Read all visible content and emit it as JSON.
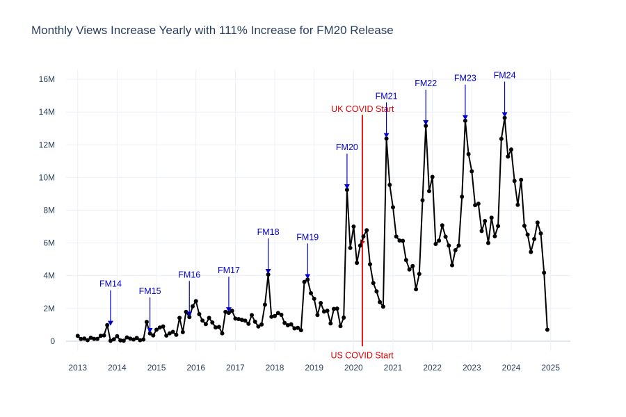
{
  "title": "Monthly Views Increase Yearly with 111% Increase for FM20 Release",
  "colors": {
    "line": "#000000",
    "fm_annotation": "#0000cc",
    "covid": "#e00000",
    "grid": "#ebf0f8",
    "text": "#2a3f5f"
  },
  "chart_data": {
    "type": "line",
    "title": "Monthly Views Increase Yearly with 111% Increase for FM20 Release",
    "xlabel": "",
    "ylabel": "",
    "xlim": [
      "2012-09-15",
      "2025-07-01"
    ],
    "ylim": [
      -600000,
      16600000
    ],
    "grid": true,
    "legend": "none",
    "x_ticks": [
      "2013",
      "2014",
      "2015",
      "2016",
      "2017",
      "2018",
      "2019",
      "2020",
      "2021",
      "2022",
      "2023",
      "2024",
      "2025"
    ],
    "y_ticks": [
      {
        "value": 0,
        "label": "0"
      },
      {
        "value": 2000000,
        "label": "2M"
      },
      {
        "value": 4000000,
        "label": "4M"
      },
      {
        "value": 6000000,
        "label": "6M"
      },
      {
        "value": 8000000,
        "label": "8M"
      },
      {
        "value": 10000000,
        "label": "10M"
      },
      {
        "value": 12000000,
        "label": "12M"
      },
      {
        "value": 14000000,
        "label": "14M"
      },
      {
        "value": 16000000,
        "label": "16M"
      }
    ],
    "x": [
      "2013-01",
      "2013-02",
      "2013-03",
      "2013-04",
      "2013-05",
      "2013-06",
      "2013-07",
      "2013-08",
      "2013-09",
      "2013-10",
      "2013-11",
      "2013-12",
      "2014-01",
      "2014-02",
      "2014-03",
      "2014-04",
      "2014-05",
      "2014-06",
      "2014-07",
      "2014-08",
      "2014-09",
      "2014-10",
      "2014-11",
      "2014-12",
      "2015-01",
      "2015-02",
      "2015-03",
      "2015-04",
      "2015-05",
      "2015-06",
      "2015-07",
      "2015-08",
      "2015-09",
      "2015-10",
      "2015-11",
      "2015-12",
      "2016-01",
      "2016-02",
      "2016-03",
      "2016-04",
      "2016-05",
      "2016-06",
      "2016-07",
      "2016-08",
      "2016-09",
      "2016-10",
      "2016-11",
      "2016-12",
      "2017-01",
      "2017-02",
      "2017-03",
      "2017-04",
      "2017-05",
      "2017-06",
      "2017-07",
      "2017-08",
      "2017-09",
      "2017-10",
      "2017-11",
      "2017-12",
      "2018-01",
      "2018-02",
      "2018-03",
      "2018-04",
      "2018-05",
      "2018-06",
      "2018-07",
      "2018-08",
      "2018-09",
      "2018-10",
      "2018-11",
      "2018-12",
      "2019-01",
      "2019-02",
      "2019-03",
      "2019-04",
      "2019-05",
      "2019-06",
      "2019-07",
      "2019-08",
      "2019-09",
      "2019-10",
      "2019-11",
      "2019-12",
      "2020-01",
      "2020-02",
      "2020-03",
      "2020-04",
      "2020-05",
      "2020-06",
      "2020-07",
      "2020-08",
      "2020-09",
      "2020-10",
      "2020-11",
      "2020-12",
      "2021-01",
      "2021-02",
      "2021-03",
      "2021-04",
      "2021-05",
      "2021-06",
      "2021-07",
      "2021-08",
      "2021-09",
      "2021-10",
      "2021-11",
      "2021-12",
      "2022-01",
      "2022-02",
      "2022-03",
      "2022-04",
      "2022-05",
      "2022-06",
      "2022-07",
      "2022-08",
      "2022-09",
      "2022-10",
      "2022-11",
      "2022-12",
      "2023-01",
      "2023-02",
      "2023-03",
      "2023-04",
      "2023-05",
      "2023-06",
      "2023-07",
      "2023-08",
      "2023-09",
      "2023-10",
      "2023-11",
      "2023-12",
      "2024-01",
      "2024-02",
      "2024-03",
      "2024-04",
      "2024-05",
      "2024-06",
      "2024-07",
      "2024-08",
      "2024-09",
      "2024-10",
      "2024-11",
      "2024-12"
    ],
    "series": [
      {
        "values": [
          320000,
          130000,
          160000,
          60000,
          210000,
          140000,
          140000,
          330000,
          350000,
          980000,
          20000,
          110000,
          300000,
          50000,
          30000,
          230000,
          150000,
          100000,
          200000,
          60000,
          100000,
          1170000,
          470000,
          350000,
          700000,
          830000,
          900000,
          340000,
          480000,
          570000,
          390000,
          1420000,
          550000,
          1790000,
          1470000,
          2130000,
          2450000,
          1650000,
          1260000,
          1040000,
          1420000,
          1140000,
          840000,
          870000,
          480000,
          1790000,
          1730000,
          1860000,
          1380000,
          1350000,
          1300000,
          1250000,
          1060000,
          1590000,
          1190000,
          900000,
          1020000,
          2230000,
          4070000,
          1490000,
          1530000,
          1720000,
          1610000,
          1110000,
          970000,
          1030000,
          780000,
          810000,
          670000,
          3620000,
          3760000,
          2930000,
          2590000,
          1600000,
          2330000,
          1810000,
          1860000,
          1080000,
          1970000,
          1990000,
          920000,
          1440000,
          9250000,
          5700000,
          7000000,
          4780000,
          5840000,
          6400000,
          6780000,
          4700000,
          3550000,
          3040000,
          2390000,
          2110000,
          12380000,
          9550000,
          8180000,
          6390000,
          6150000,
          6130000,
          4950000,
          4380000,
          4590000,
          3170000,
          4110000,
          8610000,
          13160000,
          9170000,
          10040000,
          5940000,
          6140000,
          7080000,
          6380000,
          5840000,
          4640000,
          5560000,
          5840000,
          8830000,
          13470000,
          11430000,
          10380000,
          8310000,
          8400000,
          6730000,
          7340000,
          6000000,
          7540000,
          6410000,
          7030000,
          12360000,
          13650000,
          11280000,
          11710000,
          9790000,
          8330000,
          9860000,
          7050000,
          6510000,
          5450000,
          6240000,
          7250000,
          6580000,
          4180000,
          700000
        ]
      }
    ],
    "annotations": [
      {
        "text": "FM14",
        "x": "2013-11",
        "y": 900000
      },
      {
        "text": "FM15",
        "x": "2014-11",
        "y": 470000
      },
      {
        "text": "FM16",
        "x": "2015-11",
        "y": 1470000
      },
      {
        "text": "FM17",
        "x": "2016-11",
        "y": 1730000
      },
      {
        "text": "FM18",
        "x": "2017-11",
        "y": 4070000
      },
      {
        "text": "FM19",
        "x": "2018-11",
        "y": 3760000
      },
      {
        "text": "FM20",
        "x": "2019-11",
        "y": 9250000
      },
      {
        "text": "FM21",
        "x": "2020-11",
        "y": 12380000
      },
      {
        "text": "FM22",
        "x": "2021-11",
        "y": 13160000
      },
      {
        "text": "FM23",
        "x": "2022-11",
        "y": 13470000
      },
      {
        "text": "FM24",
        "x": "2023-11",
        "y": 13650000
      }
    ],
    "reference_lines": [
      {
        "label": "US COVID Start",
        "date": "2020-03-19",
        "label_position": "bottom"
      },
      {
        "label": "UK COVID Start",
        "date": "2020-03-23",
        "label_position": "top",
        "arrow_to": "2020-03",
        "arrow_y": 5840000
      }
    ]
  }
}
